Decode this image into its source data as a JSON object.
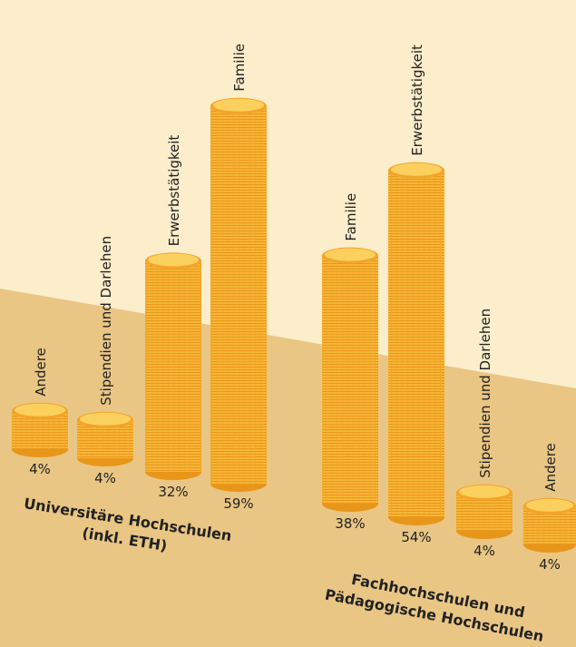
{
  "chart_data": {
    "type": "bar",
    "color": "#f7b436",
    "groups": [
      {
        "label": [
          "Universitäre Hochschulen",
          "(inkl. ETH)"
        ],
        "categories": [
          "Andere",
          "Stipendien und Darlehen",
          "Erwerbstätigkeit",
          "Familie"
        ],
        "values": [
          4,
          4,
          32,
          59
        ],
        "value_labels": [
          "4%",
          "4%",
          "32%",
          "59%"
        ]
      },
      {
        "label": [
          "Fachhochschulen und",
          "Pädagogische Hochschulen"
        ],
        "categories": [
          "Familie",
          "Erwerbstätigkeit",
          "Stipendien und Darlehen",
          "Andere"
        ],
        "values": [
          38,
          54,
          4,
          4
        ],
        "value_labels": [
          "38%",
          "54%",
          "4%",
          "4%"
        ]
      }
    ]
  }
}
